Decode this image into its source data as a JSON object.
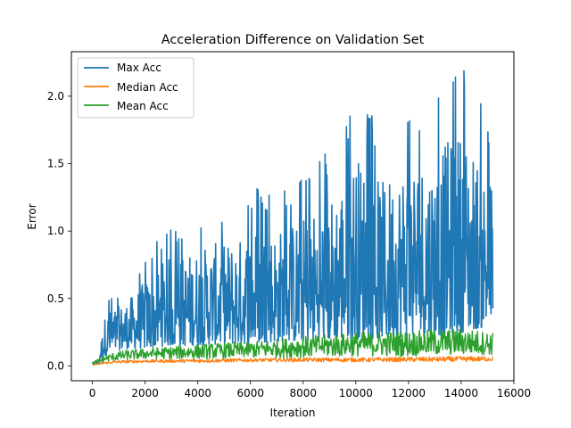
{
  "chart_data": {
    "type": "line",
    "title": "Acceleration Difference on Validation Set",
    "xlabel": "Iteration",
    "ylabel": "Error",
    "xlim": [
      -800,
      16000
    ],
    "ylim": [
      -0.11,
      2.33
    ],
    "xticks": [
      0,
      2000,
      4000,
      6000,
      8000,
      10000,
      12000,
      14000,
      16000
    ],
    "xtick_labels": [
      "0",
      "2000",
      "4000",
      "6000",
      "8000",
      "10000",
      "12000",
      "14000",
      "16000"
    ],
    "yticks": [
      0.0,
      0.5,
      1.0,
      1.5,
      2.0
    ],
    "ytick_labels": [
      "0.0",
      "0.5",
      "1.0",
      "1.5",
      "2.0"
    ],
    "legend_position": "upper-left",
    "series": [
      {
        "name": "Max Acc",
        "color": "#1f77b4",
        "envelope_x": [
          0,
          250,
          300,
          500,
          700,
          1000,
          1500,
          2000,
          2800,
          3500,
          4500,
          5500,
          6200,
          7000,
          8000,
          9000,
          10000,
          11000,
          12000,
          13000,
          14000,
          15200
        ],
        "envelope_upper": [
          0.03,
          0.05,
          0.2,
          0.5,
          0.52,
          0.55,
          0.65,
          0.8,
          1.02,
          1.05,
          1.15,
          1.2,
          1.33,
          1.3,
          1.42,
          1.62,
          2.05,
          1.75,
          2.0,
          2.02,
          2.27,
          1.75
        ],
        "envelope_lower": [
          0.01,
          0.01,
          0.05,
          0.08,
          0.1,
          0.12,
          0.13,
          0.13,
          0.15,
          0.15,
          0.16,
          0.16,
          0.17,
          0.18,
          0.18,
          0.19,
          0.2,
          0.2,
          0.22,
          0.22,
          0.25,
          0.3
        ]
      },
      {
        "name": "Median Acc",
        "color": "#ff7f0e",
        "envelope_x": [
          0,
          500,
          1000,
          2000,
          4000,
          6000,
          8000,
          10000,
          12000,
          14000,
          15200
        ],
        "envelope_upper": [
          0.015,
          0.03,
          0.04,
          0.045,
          0.05,
          0.055,
          0.06,
          0.06,
          0.065,
          0.07,
          0.07
        ],
        "envelope_lower": [
          0.005,
          0.015,
          0.02,
          0.025,
          0.025,
          0.03,
          0.03,
          0.03,
          0.03,
          0.03,
          0.035
        ]
      },
      {
        "name": "Mean Acc",
        "color": "#2ca02c",
        "envelope_x": [
          0,
          500,
          1000,
          2000,
          4000,
          6000,
          8000,
          10000,
          12000,
          14000,
          15200
        ],
        "envelope_upper": [
          0.03,
          0.08,
          0.11,
          0.13,
          0.16,
          0.18,
          0.22,
          0.25,
          0.26,
          0.28,
          0.25
        ],
        "envelope_lower": [
          0.01,
          0.03,
          0.04,
          0.05,
          0.05,
          0.06,
          0.06,
          0.07,
          0.07,
          0.08,
          0.08
        ]
      }
    ]
  }
}
